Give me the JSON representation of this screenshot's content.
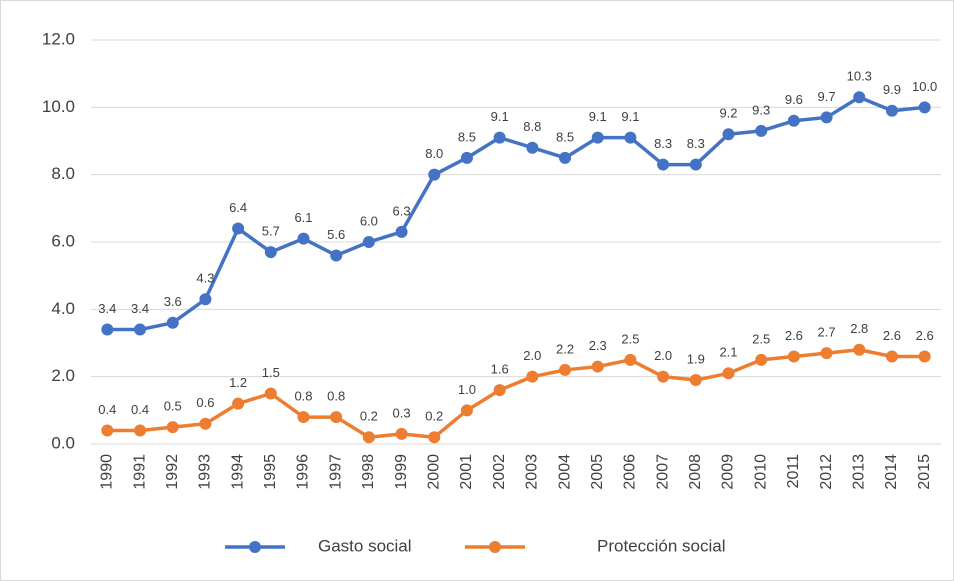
{
  "chart_data": {
    "type": "line",
    "categories": [
      "1990",
      "1991",
      "1992",
      "1993",
      "1994",
      "1995",
      "1996",
      "1997",
      "1998",
      "1999",
      "2000",
      "2001",
      "2002",
      "2003",
      "2004",
      "2005",
      "2006",
      "2007",
      "2008",
      "2009",
      "2010",
      "2011",
      "2012",
      "2013",
      "2014",
      "2015"
    ],
    "series": [
      {
        "name": "Gasto social",
        "color": "#4472c4",
        "values": [
          3.4,
          3.4,
          3.6,
          4.3,
          6.4,
          5.7,
          6.1,
          5.6,
          6.0,
          6.3,
          8.0,
          8.5,
          9.1,
          8.8,
          8.5,
          9.1,
          9.1,
          8.3,
          8.3,
          9.2,
          9.3,
          9.6,
          9.7,
          10.3,
          9.9,
          10.0
        ],
        "value_labels": [
          "3.4",
          "3.4",
          "3.6",
          "4.3",
          "6.4",
          "5.7",
          "6.1",
          "5.6",
          "6.0",
          "6.3",
          "8.0",
          "8.5",
          "9.1",
          "8.8",
          "8.5",
          "9.1",
          "9.1",
          "8.3",
          "8.3",
          "9.2",
          "9.3",
          "9.6",
          "9.7",
          "10.3",
          "9.9",
          "10.0"
        ]
      },
      {
        "name": "Protección social",
        "color": "#ed7d31",
        "values": [
          0.4,
          0.4,
          0.5,
          0.6,
          1.2,
          1.5,
          0.8,
          0.8,
          0.2,
          0.3,
          0.2,
          1.0,
          1.6,
          2.0,
          2.2,
          2.3,
          2.5,
          2.0,
          1.9,
          2.1,
          2.5,
          2.6,
          2.7,
          2.8,
          2.6,
          2.6
        ],
        "value_labels": [
          "0.4",
          "0.4",
          "0.5",
          "0.6",
          "1.2",
          "1.5",
          "0.8",
          "0.8",
          "0.2",
          "0.3",
          "0.2",
          "1.0",
          "1.6",
          "2.0",
          "2.2",
          "2.3",
          "2.5",
          "2.0",
          "1.9",
          "2.1",
          "2.5",
          "2.6",
          "2.7",
          "2.8",
          "2.6",
          "2.6"
        ]
      }
    ],
    "ylim": [
      0,
      12
    ],
    "yticks": [
      {
        "value": 0,
        "label": "0.0"
      },
      {
        "value": 2,
        "label": "2.0"
      },
      {
        "value": 4,
        "label": "4.0"
      },
      {
        "value": 6,
        "label": "6.0"
      },
      {
        "value": 8,
        "label": "8.0"
      },
      {
        "value": 10,
        "label": "10.0"
      },
      {
        "value": 12,
        "label": "12.0"
      }
    ],
    "grid": true,
    "legend": "bottom"
  }
}
